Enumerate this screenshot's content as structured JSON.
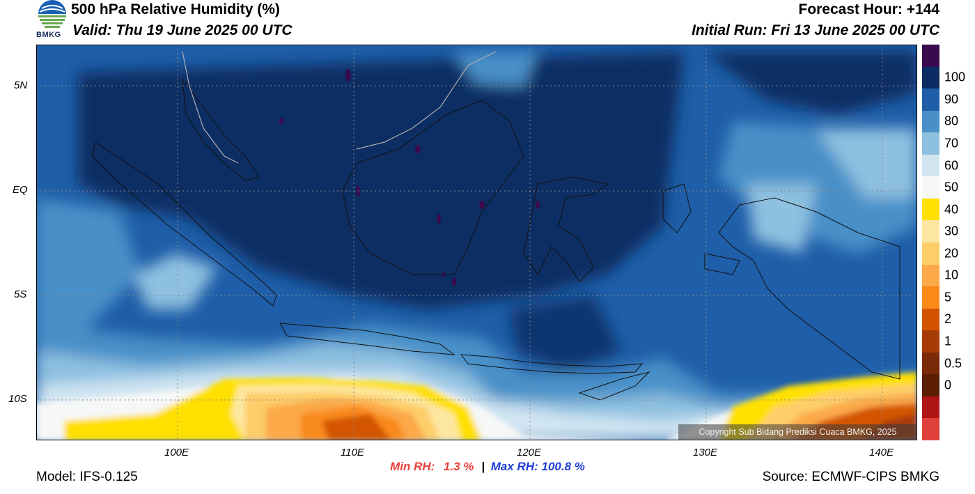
{
  "header": {
    "title": "500 hPa Relative Humidity (%)",
    "valid": "Valid: Thu 19 June 2025 00 UTC",
    "forecast_hour": "Forecast Hour: +144",
    "initial_run": "Initial Run: Fri 13 June 2025 00 UTC",
    "logo_text": "BMKG"
  },
  "map": {
    "lat_labels": [
      "5N",
      "EQ",
      "5S",
      "10S"
    ],
    "lon_labels": [
      "100E",
      "110E",
      "120E",
      "130E",
      "140E"
    ],
    "copyright": "Copyright Sub Bidang Prediksi Cuaca BMKG, 2025",
    "ocean_color": "#1d5fa6",
    "coast_color": "#111111"
  },
  "colorbar": {
    "ticks": [
      "100",
      "90",
      "80",
      "70",
      "60",
      "50",
      "40",
      "30",
      "20",
      "10",
      "5",
      "2",
      "1",
      "0.5",
      "0"
    ],
    "colors": [
      "#3a0a4e",
      "#0b2d63",
      "#1f5ea8",
      "#4a90c8",
      "#8ec0e0",
      "#d2e6f2",
      "#f6f7f7",
      "#ffe000",
      "#fde7a0",
      "#fdcd6a",
      "#fca94a",
      "#f98a1a",
      "#d35400",
      "#a73b07",
      "#7a2a08",
      "#5b1e05",
      "#b01515",
      "#e0403a"
    ]
  },
  "stats": {
    "min_label": "Min RH:",
    "min_value": "1.3 %",
    "separator": "|",
    "max_label": "Max RH: 100.8 %",
    "min_color": "#e8413c",
    "max_color": "#1f3fd6"
  },
  "footer": {
    "model": "Model: IFS-0.125",
    "source": "Source: ECMWF-CIPS BMKG"
  }
}
